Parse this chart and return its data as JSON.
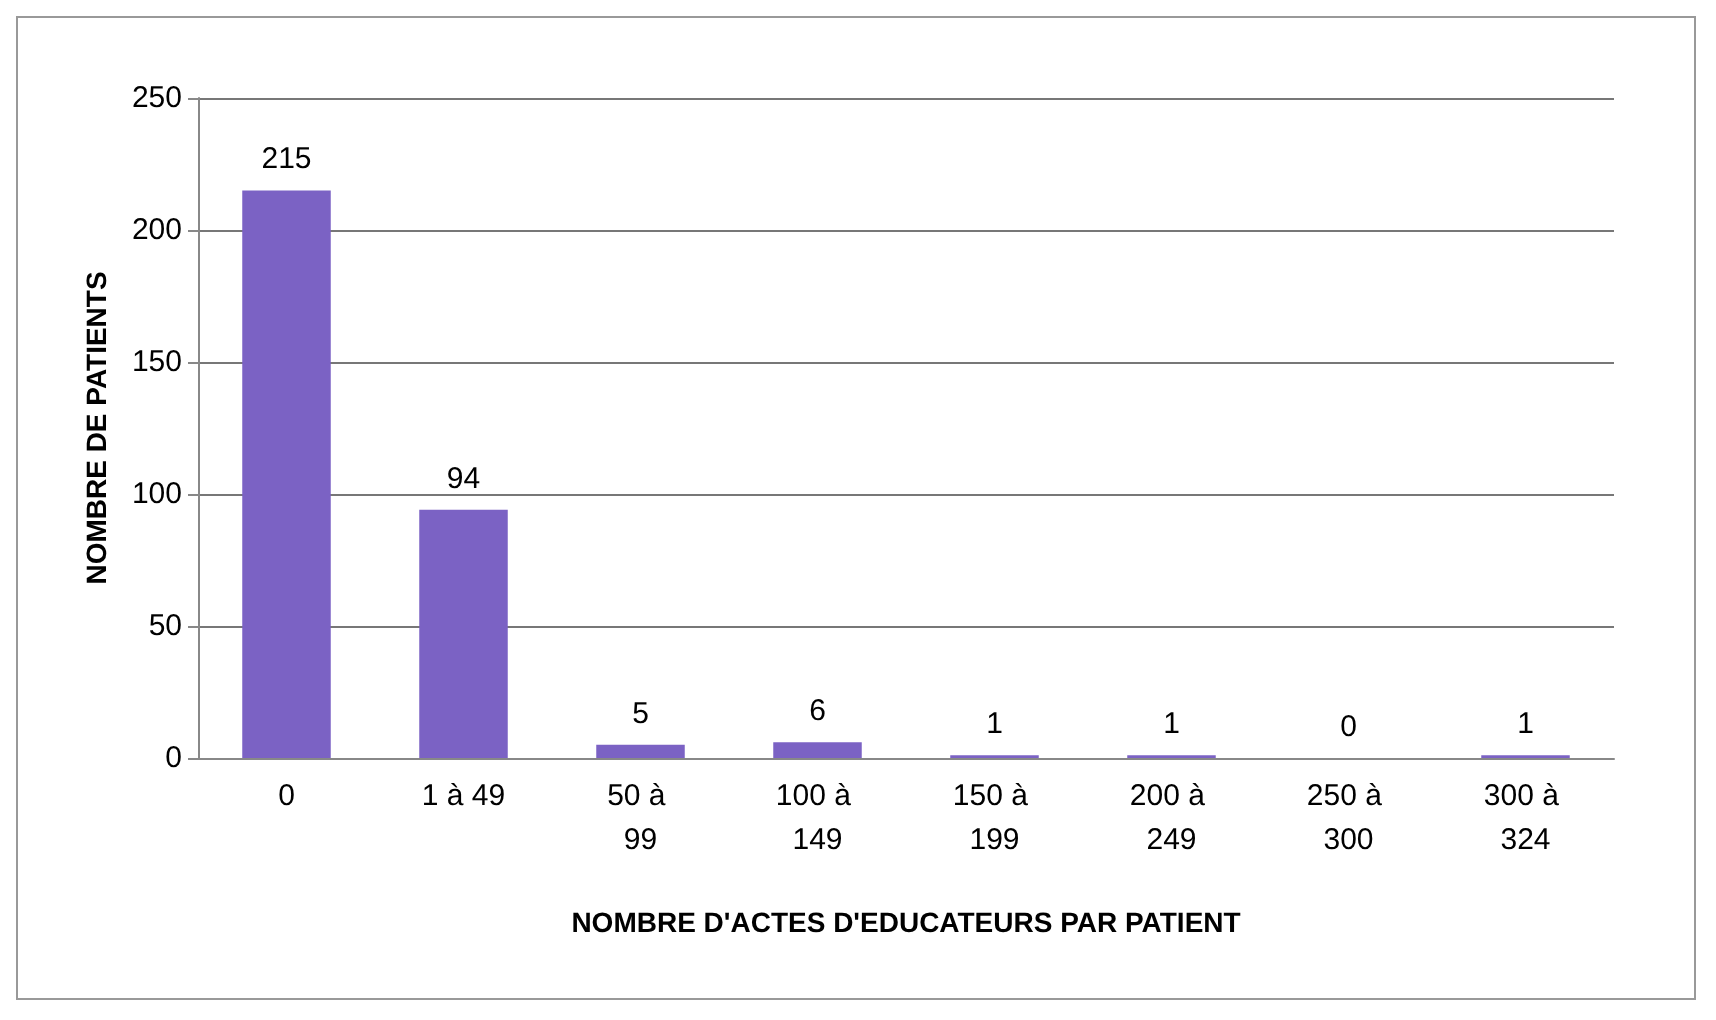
{
  "chart_data": {
    "type": "bar",
    "xlabel": "NOMBRE D'ACTES D'EDUCATEURS PAR PATIENT",
    "ylabel": "NOMBRE DE PATIENTS",
    "categories": [
      "0",
      "1 à 49",
      "50 à 99",
      "100 à 149",
      "150 à 199",
      "200 à 249",
      "250 à 300",
      "300 à 324"
    ],
    "values": [
      215,
      94,
      5,
      6,
      1,
      1,
      0,
      1
    ],
    "color": "#7b62c4",
    "ylim": [
      0,
      250
    ],
    "yticks": [
      0,
      50,
      100,
      150,
      200,
      250
    ],
    "grid": "y",
    "data_labels": true
  }
}
